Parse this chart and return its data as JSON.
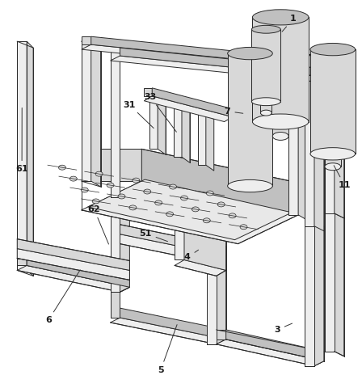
{
  "background_color": "#ffffff",
  "line_color": "#2a2a2a",
  "figsize": [
    4.48,
    4.8
  ],
  "dpi": 100,
  "label_color": "#1a1a1a",
  "face_light": "#eeeeee",
  "face_mid": "#d8d8d8",
  "face_dark": "#c0c0c0"
}
